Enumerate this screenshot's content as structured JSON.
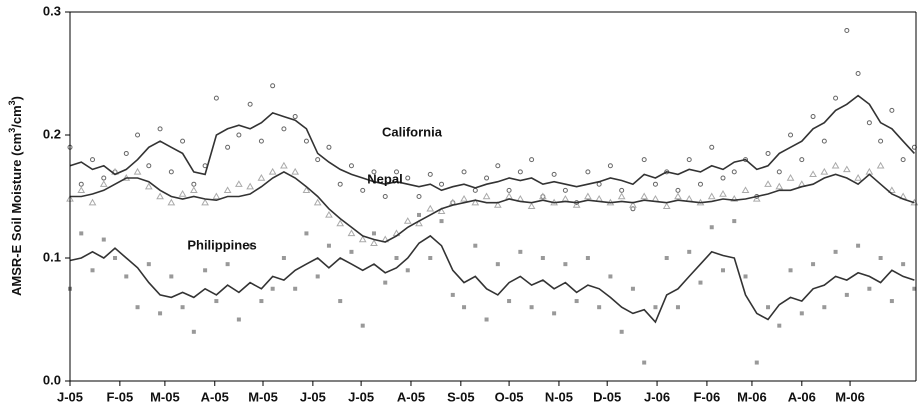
{
  "chart_data": {
    "type": "line",
    "ylabel": [
      "AMSR-E Soil Moisture (cm",
      "3",
      "/cm",
      "3",
      ")"
    ],
    "xlim": [
      0,
      526
    ],
    "xticks": [
      {
        "value": 0,
        "label": "J-05"
      },
      {
        "value": 31,
        "label": "F-05"
      },
      {
        "value": 59,
        "label": "M-05"
      },
      {
        "value": 90,
        "label": "A-05"
      },
      {
        "value": 120,
        "label": "M-05"
      },
      {
        "value": 151,
        "label": "J-05"
      },
      {
        "value": 181,
        "label": "J-05"
      },
      {
        "value": 212,
        "label": "A-05"
      },
      {
        "value": 243,
        "label": "S-05"
      },
      {
        "value": 273,
        "label": "O-05"
      },
      {
        "value": 304,
        "label": "N-05"
      },
      {
        "value": 334,
        "label": "D-05"
      },
      {
        "value": 365,
        "label": "J-06"
      },
      {
        "value": 396,
        "label": "F-06"
      },
      {
        "value": 424,
        "label": "M-06"
      },
      {
        "value": 455,
        "label": "A-06"
      },
      {
        "value": 485,
        "label": "M-06"
      }
    ],
    "ylim": [
      0,
      0.3
    ],
    "yticks": [
      {
        "value": 0,
        "label": "0.0"
      },
      0.1,
      0.2,
      0.3
    ],
    "grid": false,
    "x": [
      0,
      7,
      14,
      21,
      28,
      35,
      42,
      49,
      56,
      63,
      70,
      77,
      84,
      91,
      98,
      105,
      112,
      119,
      126,
      133,
      140,
      147,
      154,
      161,
      168,
      175,
      182,
      189,
      196,
      203,
      210,
      217,
      224,
      231,
      238,
      245,
      252,
      259,
      266,
      273,
      280,
      287,
      294,
      301,
      308,
      315,
      322,
      329,
      336,
      343,
      350,
      357,
      364,
      371,
      378,
      385,
      392,
      399,
      406,
      413,
      420,
      427,
      434,
      441,
      448,
      455,
      462,
      469,
      476,
      483,
      490,
      497,
      504,
      511,
      518,
      525
    ],
    "series": [
      {
        "name": "California",
        "color": "#333333",
        "marker": "circle",
        "marker_color": "#666666",
        "values": [
          0.175,
          0.178,
          0.172,
          0.175,
          0.168,
          0.172,
          0.18,
          0.19,
          0.195,
          0.19,
          0.185,
          0.17,
          0.168,
          0.2,
          0.205,
          0.208,
          0.205,
          0.21,
          0.218,
          0.215,
          0.212,
          0.205,
          0.185,
          0.178,
          0.172,
          0.168,
          0.165,
          0.162,
          0.16,
          0.162,
          0.16,
          0.158,
          0.16,
          0.155,
          0.158,
          0.16,
          0.157,
          0.16,
          0.162,
          0.165,
          0.163,
          0.165,
          0.16,
          0.162,
          0.16,
          0.158,
          0.16,
          0.162,
          0.165,
          0.163,
          0.16,
          0.168,
          0.165,
          0.17,
          0.168,
          0.172,
          0.17,
          0.175,
          0.172,
          0.178,
          0.18,
          0.172,
          0.175,
          0.185,
          0.19,
          0.195,
          0.205,
          0.21,
          0.22,
          0.225,
          0.232,
          0.225,
          0.21,
          0.205,
          0.195,
          0.185
        ],
        "observations": [
          0.19,
          0.16,
          0.18,
          0.165,
          0.17,
          0.185,
          0.2,
          0.175,
          0.205,
          0.17,
          0.195,
          0.16,
          0.175,
          0.23,
          0.19,
          0.2,
          0.225,
          0.195,
          0.24,
          0.205,
          0.215,
          0.195,
          0.18,
          0.19,
          0.16,
          0.175,
          0.155,
          0.17,
          0.15,
          0.17,
          0.165,
          0.15,
          0.168,
          0.16,
          0.145,
          0.17,
          0.155,
          0.165,
          0.175,
          0.155,
          0.17,
          0.18,
          0.15,
          0.168,
          0.155,
          0.145,
          0.17,
          0.16,
          0.175,
          0.155,
          0.14,
          0.18,
          0.16,
          0.17,
          0.155,
          0.18,
          0.16,
          0.19,
          0.165,
          0.17,
          0.18,
          0.15,
          0.185,
          0.17,
          0.2,
          0.18,
          0.215,
          0.195,
          0.23,
          0.285,
          0.25,
          0.21,
          0.195,
          0.22,
          0.18,
          0.19
        ]
      },
      {
        "name": "Nepal",
        "color": "#333333",
        "marker": "triangle",
        "marker_color": "#aaaaaa",
        "values": [
          0.15,
          0.15,
          0.152,
          0.155,
          0.16,
          0.165,
          0.165,
          0.162,
          0.155,
          0.15,
          0.148,
          0.15,
          0.148,
          0.147,
          0.15,
          0.15,
          0.152,
          0.158,
          0.165,
          0.17,
          0.165,
          0.158,
          0.15,
          0.14,
          0.132,
          0.125,
          0.118,
          0.115,
          0.113,
          0.118,
          0.125,
          0.13,
          0.135,
          0.14,
          0.143,
          0.145,
          0.147,
          0.145,
          0.145,
          0.148,
          0.146,
          0.145,
          0.147,
          0.145,
          0.146,
          0.145,
          0.147,
          0.146,
          0.145,
          0.146,
          0.145,
          0.147,
          0.146,
          0.145,
          0.147,
          0.146,
          0.145,
          0.146,
          0.148,
          0.147,
          0.148,
          0.15,
          0.152,
          0.155,
          0.155,
          0.158,
          0.16,
          0.165,
          0.168,
          0.165,
          0.16,
          0.168,
          0.16,
          0.152,
          0.148,
          0.145
        ],
        "observations": [
          0.148,
          0.155,
          0.145,
          0.16,
          0.17,
          0.165,
          0.17,
          0.158,
          0.15,
          0.145,
          0.152,
          0.155,
          0.145,
          0.15,
          0.155,
          0.16,
          0.158,
          0.165,
          0.17,
          0.175,
          0.17,
          0.155,
          0.145,
          0.135,
          0.128,
          0.12,
          0.115,
          0.112,
          0.115,
          0.12,
          0.13,
          0.128,
          0.14,
          0.138,
          0.145,
          0.148,
          0.145,
          0.15,
          0.143,
          0.15,
          0.148,
          0.142,
          0.15,
          0.145,
          0.148,
          0.143,
          0.15,
          0.148,
          0.145,
          0.15,
          0.143,
          0.15,
          0.148,
          0.142,
          0.15,
          0.148,
          0.145,
          0.15,
          0.152,
          0.148,
          0.155,
          0.148,
          0.16,
          0.158,
          0.165,
          0.16,
          0.168,
          0.17,
          0.175,
          0.172,
          0.165,
          0.17,
          0.175,
          0.155,
          0.15,
          0.145
        ]
      },
      {
        "name": "Philippines",
        "color": "#333333",
        "marker": "square",
        "marker_color": "#999999",
        "values": [
          0.098,
          0.1,
          0.105,
          0.1,
          0.108,
          0.1,
          0.092,
          0.08,
          0.07,
          0.068,
          0.072,
          0.068,
          0.075,
          0.07,
          0.078,
          0.072,
          0.08,
          0.075,
          0.085,
          0.082,
          0.09,
          0.095,
          0.1,
          0.092,
          0.1,
          0.095,
          0.09,
          0.095,
          0.088,
          0.092,
          0.1,
          0.112,
          0.118,
          0.11,
          0.09,
          0.08,
          0.085,
          0.075,
          0.07,
          0.08,
          0.085,
          0.078,
          0.082,
          0.075,
          0.08,
          0.072,
          0.078,
          0.075,
          0.068,
          0.06,
          0.055,
          0.058,
          0.048,
          0.07,
          0.075,
          0.085,
          0.095,
          0.105,
          0.102,
          0.1,
          0.07,
          0.055,
          0.05,
          0.062,
          0.068,
          0.065,
          0.075,
          0.078,
          0.085,
          0.082,
          0.088,
          0.085,
          0.08,
          0.09,
          0.085,
          0.082
        ],
        "observations": [
          0.075,
          0.12,
          0.09,
          0.115,
          0.1,
          0.085,
          0.06,
          0.095,
          0.055,
          0.085,
          0.06,
          0.04,
          0.09,
          0.065,
          0.095,
          0.05,
          0.11,
          0.065,
          0.075,
          0.1,
          0.075,
          0.12,
          0.085,
          0.11,
          0.065,
          0.105,
          0.045,
          0.12,
          0.08,
          0.1,
          0.09,
          0.135,
          0.1,
          0.13,
          0.07,
          0.06,
          0.11,
          0.05,
          0.095,
          0.065,
          0.105,
          0.06,
          0.1,
          0.055,
          0.095,
          0.065,
          0.1,
          0.06,
          0.085,
          0.04,
          0.075,
          0.015,
          0.06,
          0.1,
          0.06,
          0.105,
          0.08,
          0.125,
          0.09,
          0.13,
          0.085,
          0.015,
          0.06,
          0.045,
          0.09,
          0.055,
          0.095,
          0.06,
          0.105,
          0.07,
          0.11,
          0.075,
          0.1,
          0.065,
          0.095,
          0.075
        ]
      }
    ]
  }
}
